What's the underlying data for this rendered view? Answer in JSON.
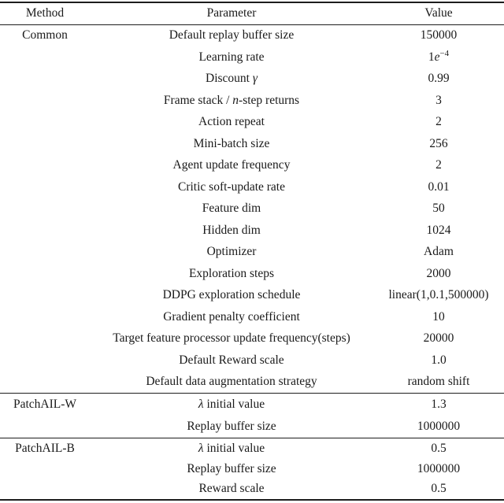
{
  "page": {
    "background": "#ffffff",
    "text_color": "#1a1a1a",
    "rule_color": "#1d1d1d"
  },
  "table": {
    "columns": [
      {
        "label": "Method"
      },
      {
        "label": "Parameter"
      },
      {
        "label": "Value"
      }
    ],
    "sections": [
      {
        "method": "Common",
        "rows": [
          {
            "parameter": "Default replay buffer size",
            "value": "150000"
          },
          {
            "parameter": "Learning rate",
            "value": "1$e$^{−4}"
          },
          {
            "parameter": "Discount $γ$",
            "value": "0.99"
          },
          {
            "parameter": "Frame stack / $n$-step returns",
            "value": "3"
          },
          {
            "parameter": "Action repeat",
            "value": "2"
          },
          {
            "parameter": "Mini-batch size",
            "value": "256"
          },
          {
            "parameter": "Agent update frequency",
            "value": "2"
          },
          {
            "parameter": "Critic soft-update rate",
            "value": "0.01"
          },
          {
            "parameter": "Feature dim",
            "value": "50"
          },
          {
            "parameter": "Hidden dim",
            "value": "1024"
          },
          {
            "parameter": "Optimizer",
            "value": "Adam"
          },
          {
            "parameter": "Exploration steps",
            "value": "2000"
          },
          {
            "parameter": "DDPG exploration schedule",
            "value": "linear(1,0.1,500000)"
          },
          {
            "parameter": "Gradient penalty coefficient",
            "value": "10"
          },
          {
            "parameter": "Target feature processor update frequency(steps)",
            "value": "20000"
          },
          {
            "parameter": "Default Reward scale",
            "value": "1.0"
          },
          {
            "parameter": "Default data augmentation strategy",
            "value": "random shift"
          }
        ]
      },
      {
        "method": "PatchAIL-W",
        "rows": [
          {
            "parameter": "$λ$ initial value",
            "value": "1.3"
          },
          {
            "parameter": "Replay buffer size",
            "value": "1000000"
          }
        ]
      },
      {
        "method": "PatchAIL-B",
        "rows": [
          {
            "parameter": "$λ$ initial value",
            "value": "0.5"
          },
          {
            "parameter": "Replay buffer size",
            "value": "1000000"
          },
          {
            "parameter": "Reward scale",
            "value": "0.5"
          }
        ]
      }
    ]
  }
}
